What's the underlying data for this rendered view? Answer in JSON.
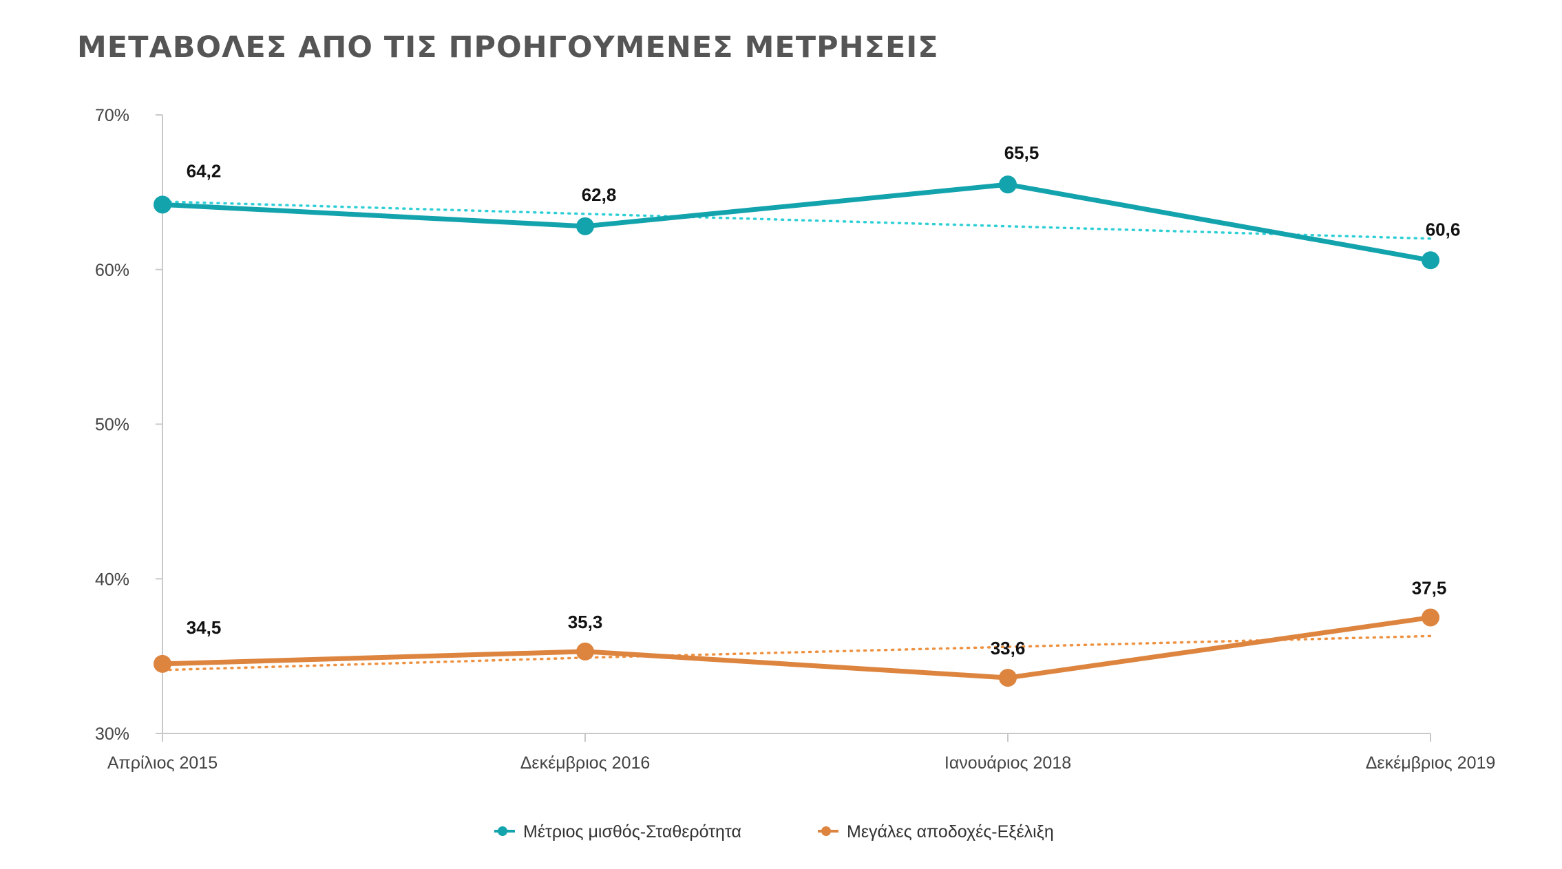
{
  "chart_data": {
    "type": "line",
    "title": "ΜΕΤΑΒΟΛΕΣ ΑΠΟ ΤΙΣ ΠΡΟΗΓΟΥΜΕΝΕΣ ΜΕΤΡΗΣΕΙΣ",
    "categories": [
      "Απρίλιος 2015",
      "Δεκέμβριος 2016",
      "Ιανουάριος 2018",
      "Δεκέμβριος 2019"
    ],
    "ylim": [
      30,
      70
    ],
    "yticks": [
      30,
      40,
      50,
      60,
      70
    ],
    "ytick_labels": [
      "30%",
      "40%",
      "50%",
      "60%",
      "70%"
    ],
    "grid": false,
    "legend_position": "bottom-center",
    "series": [
      {
        "name": "Μέτριος μισθός-Σταθερότητα",
        "color": "#13a3ad",
        "trend_color": "#2fcfd6",
        "values": [
          64.2,
          62.8,
          65.5,
          60.6
        ],
        "labels": [
          "64,2",
          "62,8",
          "65,5",
          "60,6"
        ],
        "trendline": [
          64.4,
          63.6,
          62.8,
          62.0
        ]
      },
      {
        "name": "Μεγάλες αποδοχές-Εξέλιξη",
        "color": "#dd843f",
        "trend_color": "#ee9140",
        "values": [
          34.5,
          35.3,
          33.6,
          37.5
        ],
        "labels": [
          "34,5",
          "35,3",
          "33,6",
          "37,5"
        ],
        "trendline": [
          34.1,
          34.9,
          35.6,
          36.3
        ]
      }
    ]
  }
}
